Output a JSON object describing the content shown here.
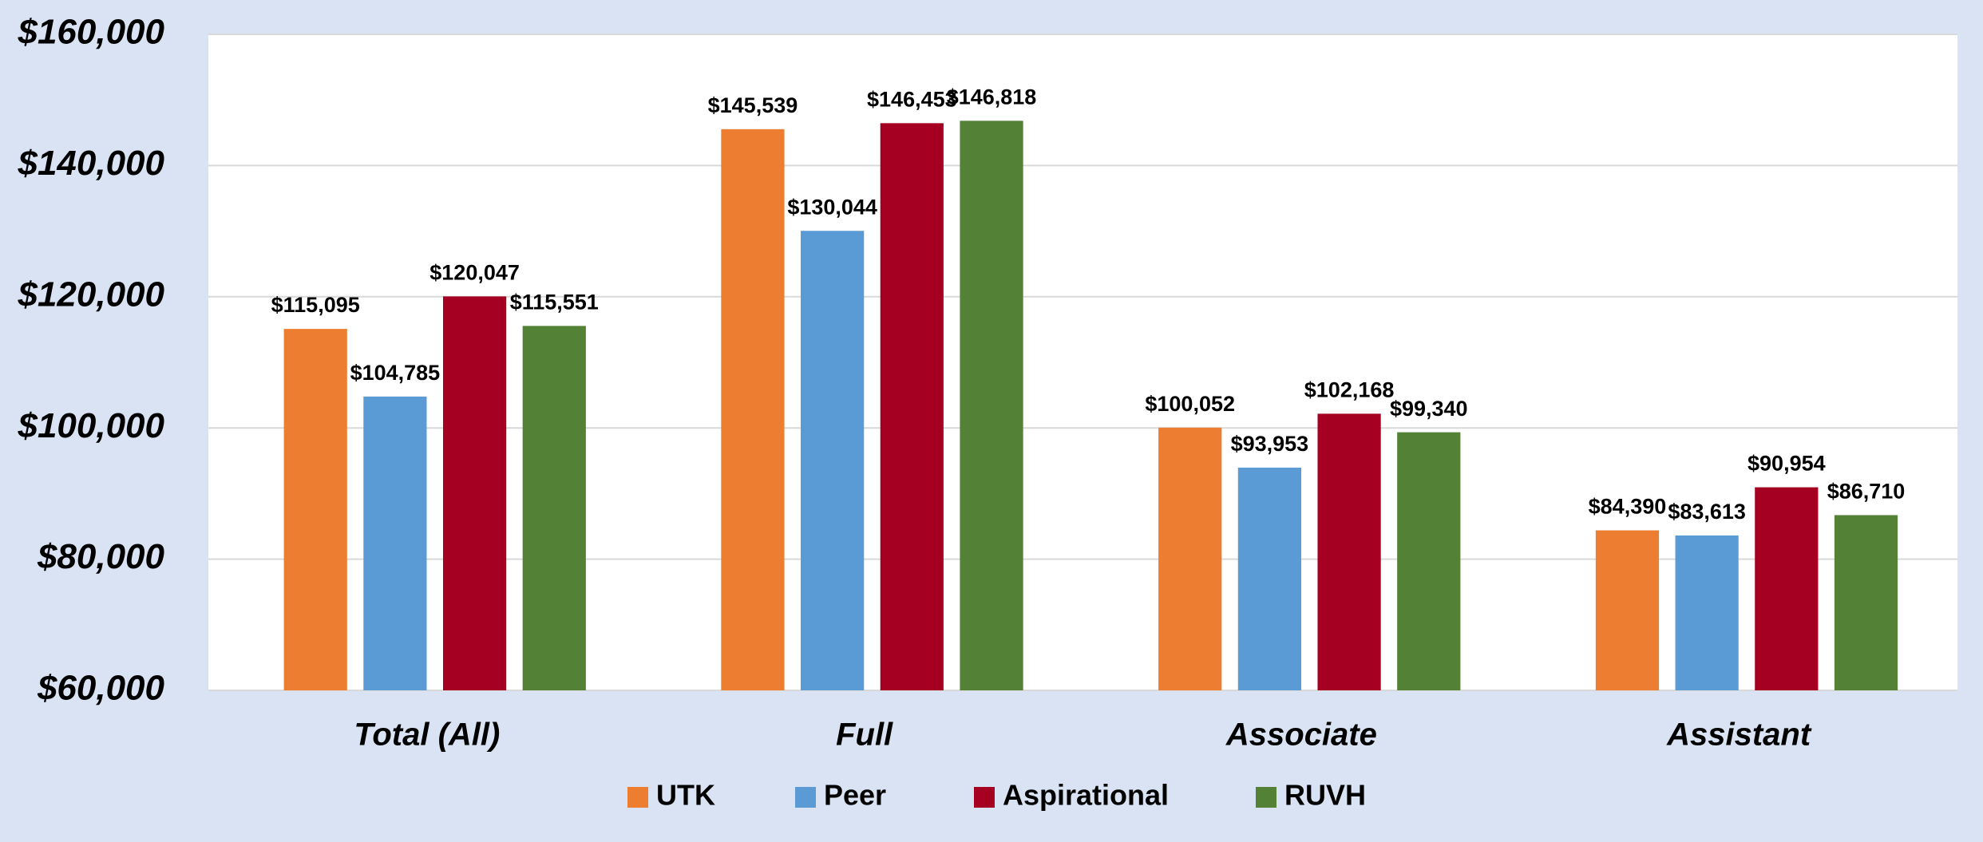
{
  "chart_data": {
    "type": "bar",
    "categories": [
      "Total (All)",
      "Full",
      "Associate",
      "Assistant"
    ],
    "series": [
      {
        "name": "UTK",
        "color": "#ed7d31",
        "values": [
          115095,
          145539,
          100052,
          84390
        ],
        "value_labels": [
          "$115,095",
          "$145,539",
          "$100,052",
          "$84,390"
        ]
      },
      {
        "name": "Peer",
        "color": "#5b9bd5",
        "values": [
          104785,
          130044,
          93953,
          83613
        ],
        "value_labels": [
          "$104,785",
          "$130,044",
          "$93,953",
          "$83,613"
        ]
      },
      {
        "name": "Aspirational",
        "color": "#a50021",
        "values": [
          120047,
          146453,
          102168,
          90954
        ],
        "value_labels": [
          "$120,047",
          "$146,453",
          "$102,168",
          "$90,954"
        ]
      },
      {
        "name": "RUVH",
        "color": "#538135",
        "values": [
          115551,
          146818,
          99340,
          86710
        ],
        "value_labels": [
          "$115,551",
          "$146,818",
          "$99,340",
          "$86,710"
        ]
      }
    ],
    "ylim": [
      60000,
      160000
    ],
    "yticks": [
      {
        "value": 60000,
        "label": "$60,000"
      },
      {
        "value": 80000,
        "label": "$80,000"
      },
      {
        "value": 100000,
        "label": "$100,000"
      },
      {
        "value": 120000,
        "label": "$120,000"
      },
      {
        "value": 140000,
        "label": "$140,000"
      },
      {
        "value": 160000,
        "label": "$160,000"
      }
    ],
    "grid": true,
    "legend": "bottom"
  }
}
